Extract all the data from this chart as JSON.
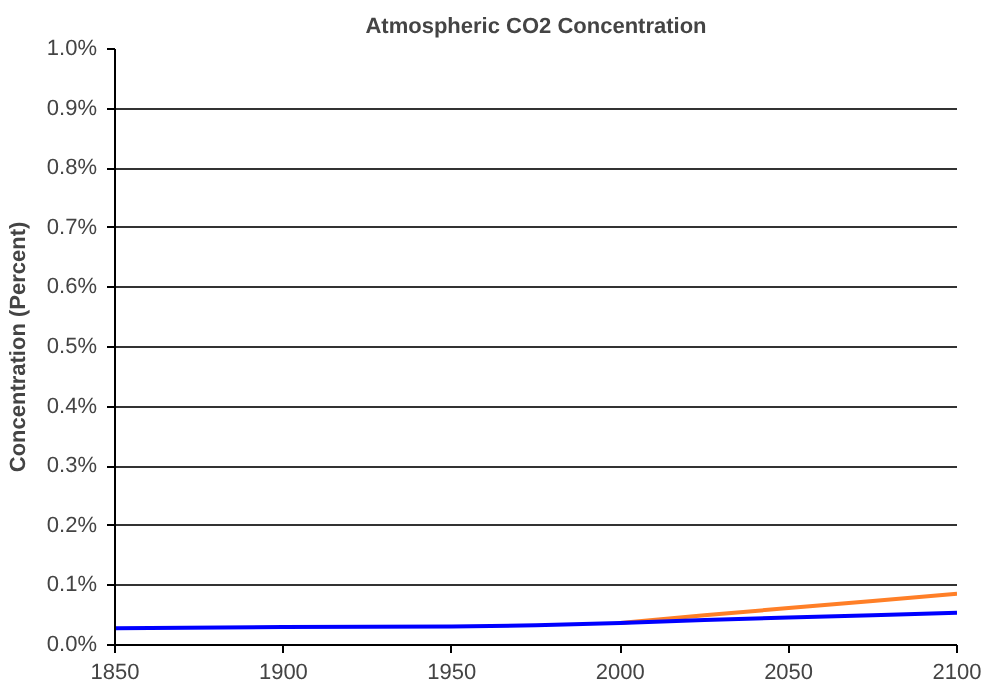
{
  "chart_data": {
    "type": "line",
    "title": "Atmospheric CO2 Concentration",
    "ylabel": "Concentration (Percent)",
    "xlim": [
      1850,
      2100
    ],
    "xticks": [
      1850,
      1900,
      1950,
      2000,
      2050,
      2100
    ],
    "ylim": [
      0,
      1.0
    ],
    "yticks": [
      {
        "value": 0,
        "label": "0.0%"
      },
      {
        "value": 0.1,
        "label": "0.1%"
      },
      {
        "value": 0.2,
        "label": "0.2%"
      },
      {
        "value": 0.3,
        "label": "0.3%"
      },
      {
        "value": 0.4,
        "label": "0.4%"
      },
      {
        "value": 0.5,
        "label": "0.5%"
      },
      {
        "value": 0.6,
        "label": "0.6%"
      },
      {
        "value": 0.7,
        "label": "0.7%"
      },
      {
        "value": 0.8,
        "label": "0.8%"
      },
      {
        "value": 0.9,
        "label": "0.9%"
      },
      {
        "value": 1.0,
        "label": "1.0%"
      }
    ],
    "grid": "y",
    "marker": "none",
    "line_style": "solid",
    "series": [
      {
        "color": "#ff7f27",
        "x": [
          2000,
          2025,
          2050,
          2075,
          2100
        ],
        "values": [
          0.037,
          0.05,
          0.062,
          0.074,
          0.086
        ]
      },
      {
        "color": "#0000ff",
        "x": [
          1850,
          1900,
          1950,
          1975,
          2000,
          2025,
          2050,
          2075,
          2100
        ],
        "values": [
          0.028,
          0.03,
          0.031,
          0.033,
          0.037,
          0.042,
          0.046,
          0.05,
          0.054
        ]
      }
    ]
  }
}
